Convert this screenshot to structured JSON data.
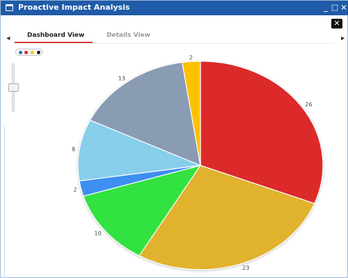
{
  "window": {
    "title": "Proactive Impact Analysis",
    "minimize_glyph": "_",
    "maximize_glyph": "□",
    "close_glyph": "✕",
    "panel_close_glyph": "✕"
  },
  "tabs": [
    {
      "label": "Dashboard View",
      "active": true
    },
    {
      "label": "Details View",
      "active": false
    }
  ],
  "nav": {
    "prev_glyph": "◀",
    "next_glyph": "▶"
  },
  "legend_colors": [
    "#1f6fd0",
    "#d9262c",
    "#f0c800",
    "#111111"
  ],
  "zoom_level": 0.5,
  "chart_data": {
    "type": "pie",
    "start_angle_deg": 0,
    "direction": "clockwise",
    "slices": [
      {
        "value": 26,
        "label": "26",
        "color": "#dc2b2b"
      },
      {
        "value": 23,
        "label": "23",
        "color": "#e0b22e"
      },
      {
        "value": 10,
        "label": "10",
        "color": "#33e23f"
      },
      {
        "value": 2,
        "label": "2",
        "color": "#3d8ff0"
      },
      {
        "value": 8,
        "label": "8",
        "color": "#87ceeb"
      },
      {
        "value": 13,
        "label": "13",
        "color": "#8a9bb4"
      },
      {
        "value": 2,
        "label": "2",
        "color": "#ffc000"
      }
    ]
  }
}
